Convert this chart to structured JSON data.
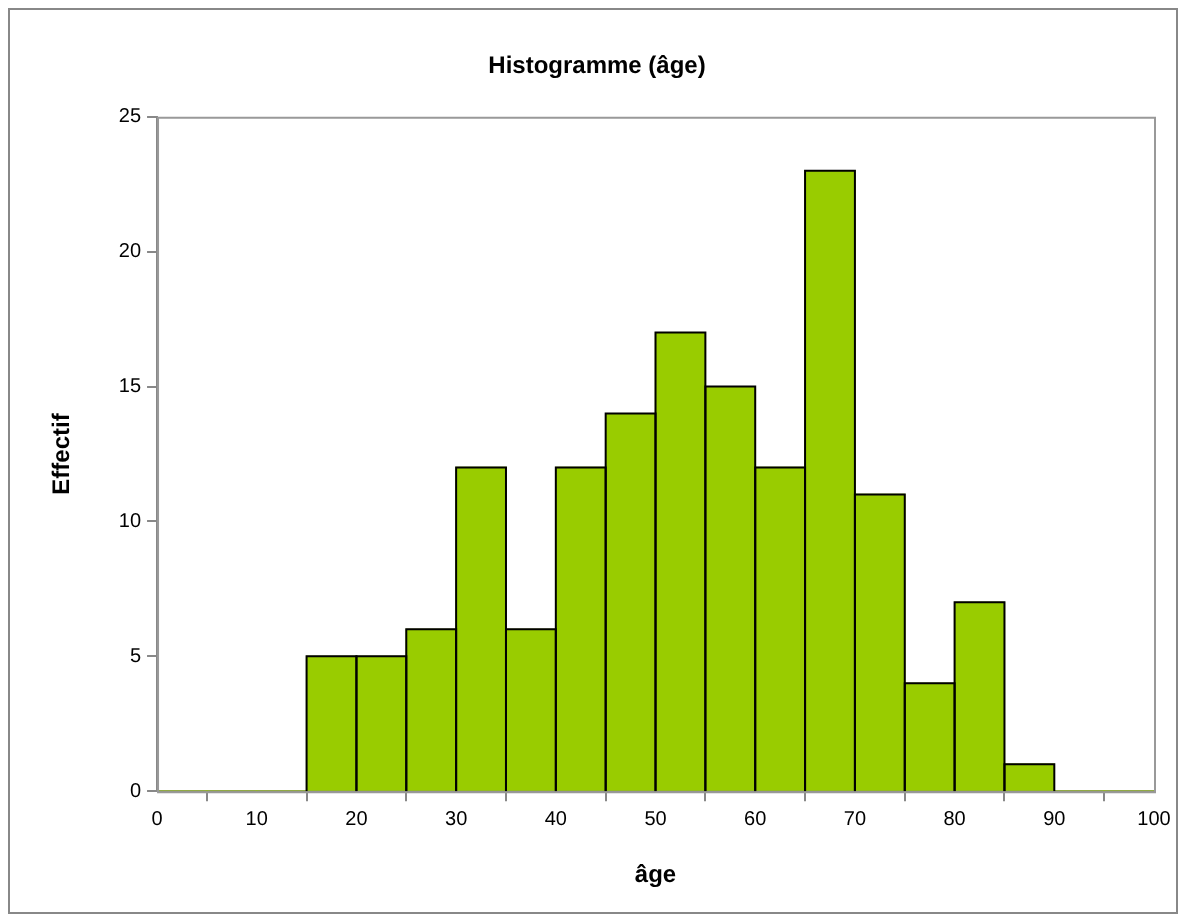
{
  "chart_data": {
    "type": "histogram",
    "title": "Histogramme (âge)",
    "xlabel": "âge",
    "ylabel": "Effectif",
    "bins": [
      0,
      5,
      10,
      15,
      20,
      25,
      30,
      35,
      40,
      45,
      50,
      55,
      60,
      65,
      70,
      75,
      80,
      85,
      90,
      95,
      100
    ],
    "values": [
      0,
      0,
      0,
      5,
      5,
      6,
      12,
      6,
      12,
      14,
      17,
      15,
      12,
      23,
      11,
      4,
      7,
      1,
      0,
      0
    ],
    "color": "#99cc00",
    "xlim": [
      0,
      100
    ],
    "xticks": [
      0,
      10,
      20,
      30,
      40,
      50,
      60,
      70,
      80,
      90,
      100
    ],
    "ylim": [
      0,
      25
    ],
    "yticks": [
      0,
      5,
      10,
      15,
      20,
      25
    ],
    "grid": false,
    "legend": false
  }
}
